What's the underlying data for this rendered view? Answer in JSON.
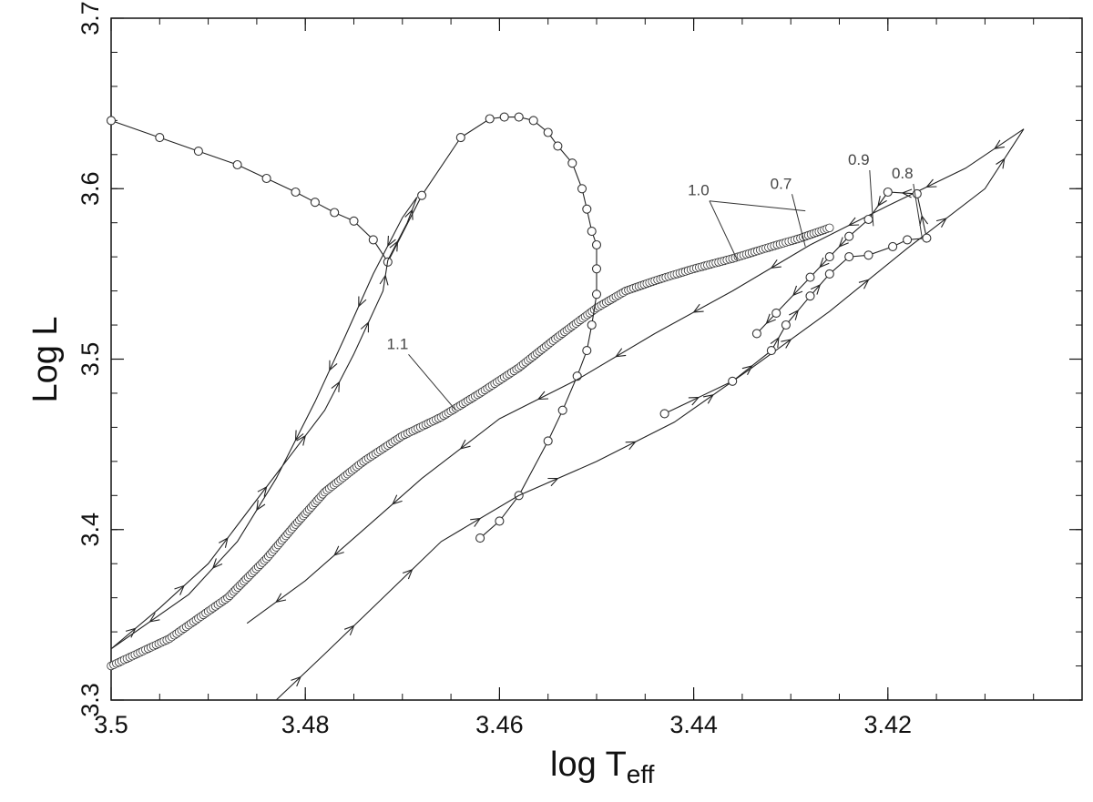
{
  "chart_data": {
    "type": "line",
    "title": "",
    "xlabel": "log T",
    "xlabel_subscript": "eff",
    "ylabel": "Log L",
    "xlim": [
      3.5,
      3.4
    ],
    "ylim": [
      3.3,
      3.7
    ],
    "x_reversed": true,
    "grid": false,
    "legend": "none",
    "x_ticks": [
      "3.5",
      "3.48",
      "3.46",
      "3.44",
      "3.42"
    ],
    "y_ticks": [
      "3.3",
      "3.4",
      "3.5",
      "3.6",
      "3.7"
    ],
    "series": [
      {
        "name": "1.1",
        "marker": "circle-dense",
        "x": [
          3.5,
          3.494,
          3.488,
          3.484,
          3.481,
          3.478,
          3.474,
          3.47,
          3.466,
          3.462,
          3.458,
          3.454,
          3.45,
          3.447,
          3.444,
          3.44,
          3.436,
          3.432,
          3.429,
          3.426
        ],
        "y": [
          3.32,
          3.336,
          3.36,
          3.383,
          3.403,
          3.422,
          3.44,
          3.455,
          3.466,
          3.48,
          3.495,
          3.513,
          3.53,
          3.54,
          3.546,
          3.553,
          3.559,
          3.566,
          3.571,
          3.577
        ]
      },
      {
        "name": "1.0",
        "marker": "circle-sparse",
        "x": [
          3.5,
          3.495,
          3.491,
          3.487,
          3.484,
          3.481,
          3.479,
          3.477,
          3.475,
          3.473,
          3.4715,
          3.468,
          3.464,
          3.461,
          3.4595,
          3.458,
          3.4565,
          3.455,
          3.454,
          3.4525,
          3.4515,
          3.451,
          3.4505,
          3.45,
          3.45,
          3.45,
          3.4505,
          3.451,
          3.452,
          3.4535,
          3.455,
          3.458,
          3.46,
          3.462
        ],
        "y": [
          3.64,
          3.63,
          3.622,
          3.614,
          3.606,
          3.598,
          3.592,
          3.586,
          3.581,
          3.57,
          3.557,
          3.596,
          3.63,
          3.641,
          3.642,
          3.642,
          3.64,
          3.633,
          3.625,
          3.615,
          3.6,
          3.588,
          3.575,
          3.567,
          3.553,
          3.538,
          3.52,
          3.505,
          3.49,
          3.47,
          3.452,
          3.42,
          3.405,
          3.395
        ]
      },
      {
        "name": "0.9",
        "marker": "arrows",
        "x": [
          3.5,
          3.495,
          3.49,
          3.486,
          3.482,
          3.478,
          3.475,
          3.472,
          3.4715,
          3.4695,
          3.4685,
          3.47,
          3.473,
          3.476,
          3.479,
          3.483,
          3.487,
          3.492,
          3.5
        ],
        "y": [
          3.33,
          3.354,
          3.38,
          3.41,
          3.44,
          3.47,
          3.503,
          3.54,
          3.558,
          3.58,
          3.595,
          3.583,
          3.55,
          3.512,
          3.475,
          3.43,
          3.393,
          3.362,
          3.33
        ]
      },
      {
        "name": "0.8",
        "marker": "arrows",
        "x": [
          3.483,
          3.478,
          3.472,
          3.466,
          3.458,
          3.45,
          3.442,
          3.434,
          3.426,
          3.418,
          3.41,
          3.406,
          3.412,
          3.42,
          3.428,
          3.436,
          3.444,
          3.452,
          3.46,
          3.468,
          3.474,
          3.48,
          3.486
        ],
        "y": [
          3.3,
          3.327,
          3.36,
          3.393,
          3.42,
          3.44,
          3.463,
          3.495,
          3.528,
          3.565,
          3.6,
          3.635,
          3.612,
          3.59,
          3.567,
          3.54,
          3.515,
          3.488,
          3.465,
          3.43,
          3.4,
          3.37,
          3.345
        ]
      },
      {
        "name": "0.7",
        "marker": "mixed",
        "x": [
          3.443,
          3.436,
          3.432,
          3.4305,
          3.428,
          3.426,
          3.424,
          3.422,
          3.4195,
          3.418,
          3.416,
          3.417,
          3.42,
          3.422,
          3.424,
          3.426,
          3.428,
          3.4315,
          3.4335
        ],
        "y": [
          3.468,
          3.487,
          3.505,
          3.52,
          3.537,
          3.55,
          3.56,
          3.561,
          3.566,
          3.57,
          3.571,
          3.597,
          3.598,
          3.582,
          3.572,
          3.56,
          3.548,
          3.527,
          3.515
        ]
      }
    ],
    "annotations": [
      {
        "text": "1.1",
        "x": 3.4705,
        "y": 3.506
      },
      {
        "text": "1.0",
        "x": 3.4395,
        "y": 3.596
      },
      {
        "text": "0.7",
        "x": 3.431,
        "y": 3.6
      },
      {
        "text": "0.9",
        "x": 3.423,
        "y": 3.614
      },
      {
        "text": "0.8",
        "x": 3.4185,
        "y": 3.606
      }
    ]
  }
}
